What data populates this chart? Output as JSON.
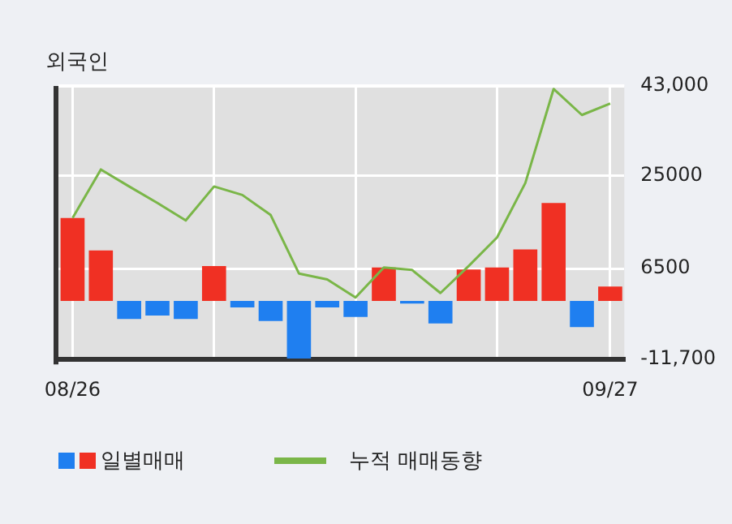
{
  "chart_data": {
    "type": "bar",
    "title": "외국인",
    "categories": [
      "08/26",
      null,
      null,
      null,
      null,
      null,
      null,
      null,
      null,
      null,
      null,
      null,
      null,
      null,
      null,
      null,
      null,
      null,
      null,
      "09/27"
    ],
    "series": [
      {
        "name": "일별매매",
        "colors": [
          "#f03023",
          "#f03023",
          "#1f7ff0",
          "#1f7ff0",
          "#1f7ff0",
          "#f03023",
          "#1f7ff0",
          "#1f7ff0",
          "#1f7ff0",
          "#1f7ff0",
          "#1f7ff0",
          "#f03023",
          "#1f7ff0",
          "#1f7ff0",
          "#f03023",
          "#f03023",
          "#f03023",
          "#f03023",
          "#1f7ff0",
          "#f03023"
        ],
        "values": [
          16600,
          10100,
          -3600,
          -2900,
          -3600,
          7000,
          -1300,
          -4000,
          -11500,
          -1300,
          -3200,
          6700,
          -500,
          -4500,
          6300,
          6700,
          10300,
          19600,
          -5200,
          2900
        ]
      },
      {
        "name": "누적 매매동향",
        "type": "line",
        "color": "#7ab648",
        "values": [
          16600,
          26300,
          22900,
          19600,
          16100,
          22900,
          21200,
          17200,
          5500,
          4300,
          700,
          6700,
          6200,
          1600,
          7000,
          12700,
          23600,
          42400,
          37200,
          39500
        ]
      }
    ],
    "ylim": [
      -11700,
      43000
    ],
    "yticks": [
      {
        "value": -11700,
        "label": "-11,700"
      },
      6500,
      25000,
      {
        "value": 43000,
        "label": "43,000"
      }
    ],
    "grid": true,
    "legend": "bottom",
    "marker": "none"
  }
}
